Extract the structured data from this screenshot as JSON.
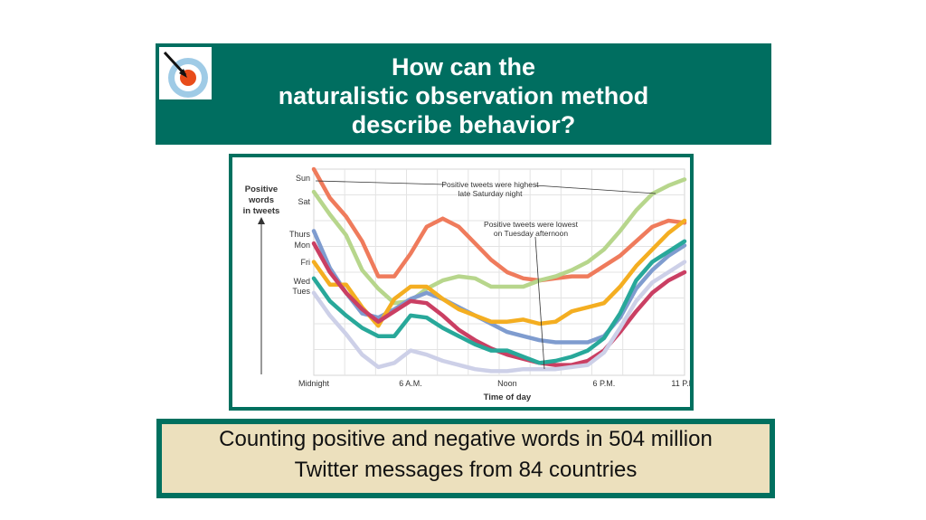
{
  "header": {
    "title_lines": [
      "How can the",
      "naturalistic observation method",
      "describe behavior?"
    ],
    "logo_icon": "target-arrow-icon"
  },
  "colors": {
    "header_bg": "#006e60",
    "frame": "#00705f",
    "caption_bg": "#ece0bd"
  },
  "chart_data": {
    "type": "line",
    "xlabel": "Time of day",
    "ylabel": "Positive words in tweets",
    "x_ticks": [
      "Midnight",
      "6 A.M.",
      "Noon",
      "6 P.M.",
      "11 P.M."
    ],
    "y_ticks": [
      "Sun",
      "Sat",
      "Thurs",
      "Mon",
      "Fri",
      "Wed",
      "Tues"
    ],
    "xlim": [
      0,
      23
    ],
    "ylim": [
      0,
      100
    ],
    "grid": true,
    "annotations": [
      "Positive tweets were highest late Saturday night",
      "Positive tweets were lowest on Tuesday afternoon"
    ],
    "x": [
      0,
      1,
      2,
      3,
      4,
      5,
      6,
      7,
      8,
      9,
      10,
      11,
      12,
      13,
      14,
      15,
      16,
      17,
      18,
      19,
      20,
      21,
      22,
      23
    ],
    "series": [
      {
        "color": "#ef7b5c",
        "values": [
          100,
          86,
          77,
          65,
          48,
          48,
          59,
          72,
          76,
          72,
          64,
          56,
          50,
          47,
          46,
          47,
          48,
          48,
          53,
          58,
          65,
          72,
          75,
          74
        ]
      },
      {
        "color": "#b7d68c",
        "values": [
          89,
          78,
          68,
          51,
          42,
          35,
          36,
          42,
          46,
          48,
          47,
          43,
          43,
          43,
          46,
          48,
          51,
          55,
          61,
          70,
          80,
          88,
          92,
          95
        ]
      },
      {
        "color": "#7f9ccf",
        "values": [
          70,
          52,
          40,
          30,
          28,
          32,
          37,
          40,
          37,
          33,
          29,
          25,
          21,
          19,
          17,
          16,
          16,
          16,
          19,
          28,
          42,
          51,
          58,
          63
        ]
      },
      {
        "color": "#f4ae21",
        "values": [
          55,
          44,
          44,
          33,
          24,
          37,
          43,
          43,
          37,
          32,
          29,
          26,
          26,
          27,
          25,
          26,
          31,
          33,
          35,
          43,
          53,
          61,
          69,
          75
        ]
      },
      {
        "color": "#ca3f63",
        "values": [
          64,
          50,
          40,
          32,
          26,
          31,
          36,
          35,
          29,
          22,
          17,
          13,
          10,
          8,
          6,
          5,
          5,
          7,
          12,
          21,
          31,
          40,
          46,
          50
        ]
      },
      {
        "color": "#28a89a",
        "values": [
          47,
          36,
          29,
          23,
          19,
          19,
          29,
          28,
          23,
          19,
          15,
          12,
          12,
          9,
          6,
          7,
          9,
          12,
          18,
          30,
          46,
          55,
          60,
          65
        ]
      },
      {
        "color": "#cdd0e8",
        "values": [
          40,
          29,
          20,
          10,
          4,
          6,
          12,
          10,
          7,
          5,
          3,
          2,
          2,
          3,
          3,
          3,
          4,
          5,
          11,
          23,
          36,
          45,
          50,
          55
        ]
      }
    ]
  },
  "caption": {
    "lines": [
      "Counting positive and negative words in 504 million",
      "Twitter messages from 84 countries"
    ]
  }
}
